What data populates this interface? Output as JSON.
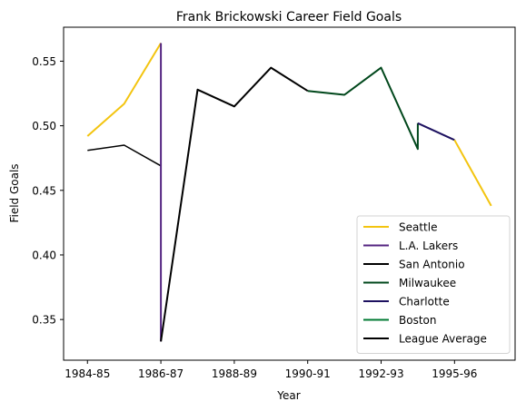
{
  "chart_data": {
    "type": "line",
    "title": "Frank Brickowski Career Field Goals",
    "xlabel": "Year",
    "ylabel": "Field Goals",
    "x_ticks": [
      {
        "label": "1984-85",
        "x": 0
      },
      {
        "label": "1986-87",
        "x": 2
      },
      {
        "label": "1988-89",
        "x": 4
      },
      {
        "label": "1990-91",
        "x": 6
      },
      {
        "label": "1992-93",
        "x": 8
      },
      {
        "label": "1995-96",
        "x": 10
      }
    ],
    "y_ticks": [
      0.35,
      0.4,
      0.45,
      0.5,
      0.55
    ],
    "xlim": [
      -0.65,
      11.65
    ],
    "ylim": [
      0.3185,
      0.5763
    ],
    "grid": false,
    "legend_position": "lower-right",
    "series": [
      {
        "name": "Seattle",
        "color": "#f3c40f",
        "width": 2,
        "points": [
          [
            0,
            0.492
          ],
          [
            1,
            0.517
          ],
          [
            2,
            0.564
          ]
        ]
      },
      {
        "name": "L.A. Lakers",
        "color": "#542582",
        "width": 2,
        "points": [
          [
            2,
            0.564
          ],
          [
            2,
            0.333
          ]
        ]
      },
      {
        "name": "San Antonio",
        "color": "#000000",
        "width": 2,
        "points": [
          [
            2,
            0.333
          ],
          [
            3,
            0.528
          ],
          [
            4,
            0.515
          ],
          [
            5,
            0.545
          ],
          [
            6,
            0.527
          ]
        ]
      },
      {
        "name": "Milwaukee",
        "color": "#00471b",
        "width": 2,
        "points": [
          [
            6,
            0.527
          ],
          [
            7,
            0.524
          ],
          [
            8,
            0.545
          ],
          [
            9,
            0.482
          ],
          [
            9,
            0.502
          ]
        ]
      },
      {
        "name": "Charlotte",
        "color": "#1d1160",
        "width": 2,
        "points": [
          [
            9,
            0.502
          ],
          [
            10,
            0.489
          ]
        ]
      },
      {
        "name": "Boston",
        "color": "#007a33",
        "width": 2,
        "points": []
      },
      {
        "name": "Seattle (return)",
        "color": "#f3c40f",
        "width": 2,
        "in_legend": false,
        "points": [
          [
            10,
            0.489
          ],
          [
            11,
            0.438
          ]
        ]
      },
      {
        "name": "League Average",
        "color": "#000000",
        "width": 1.5,
        "points": [
          [
            0,
            0.481
          ],
          [
            1,
            0.485
          ],
          [
            2,
            0.469
          ]
        ]
      }
    ]
  }
}
